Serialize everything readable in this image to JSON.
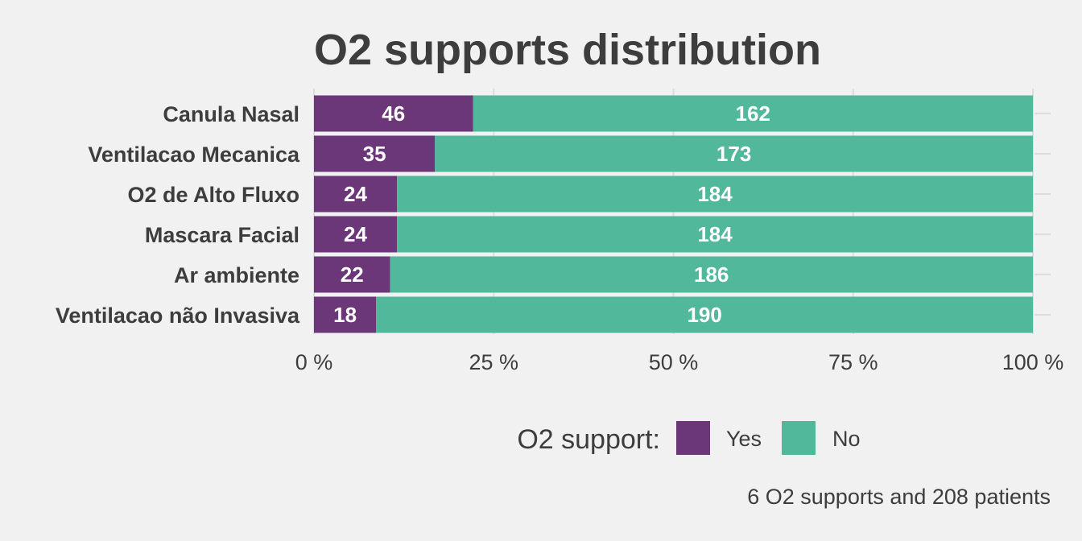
{
  "chart_data": {
    "type": "bar",
    "orientation": "horizontal",
    "stacked": "percent",
    "title": "O2 supports distribution",
    "caption": "6 O2 supports and 208 patients",
    "categories": [
      "Canula Nasal",
      "Ventilacao Mecanica",
      "O2 de Alto Fluxo",
      "Mascara Facial",
      "Ar ambiente",
      "Ventilacao não Invasiva"
    ],
    "series": [
      {
        "name": "Yes",
        "color": "#6b3779",
        "values": [
          46,
          35,
          24,
          24,
          22,
          18
        ]
      },
      {
        "name": "No",
        "color": "#52b89c",
        "values": [
          162,
          173,
          184,
          184,
          186,
          190
        ]
      }
    ],
    "x_ticks": [
      "0 %",
      "25 %",
      "50 %",
      "75 %",
      "100 %"
    ],
    "xlim": [
      0,
      100
    ],
    "grid": true,
    "legend": {
      "title": "O2 support:",
      "position": "bottom"
    },
    "colors": {
      "background": "#f1f1f1",
      "text": "#3d3d3d",
      "grid": "#dcdcdc"
    }
  }
}
